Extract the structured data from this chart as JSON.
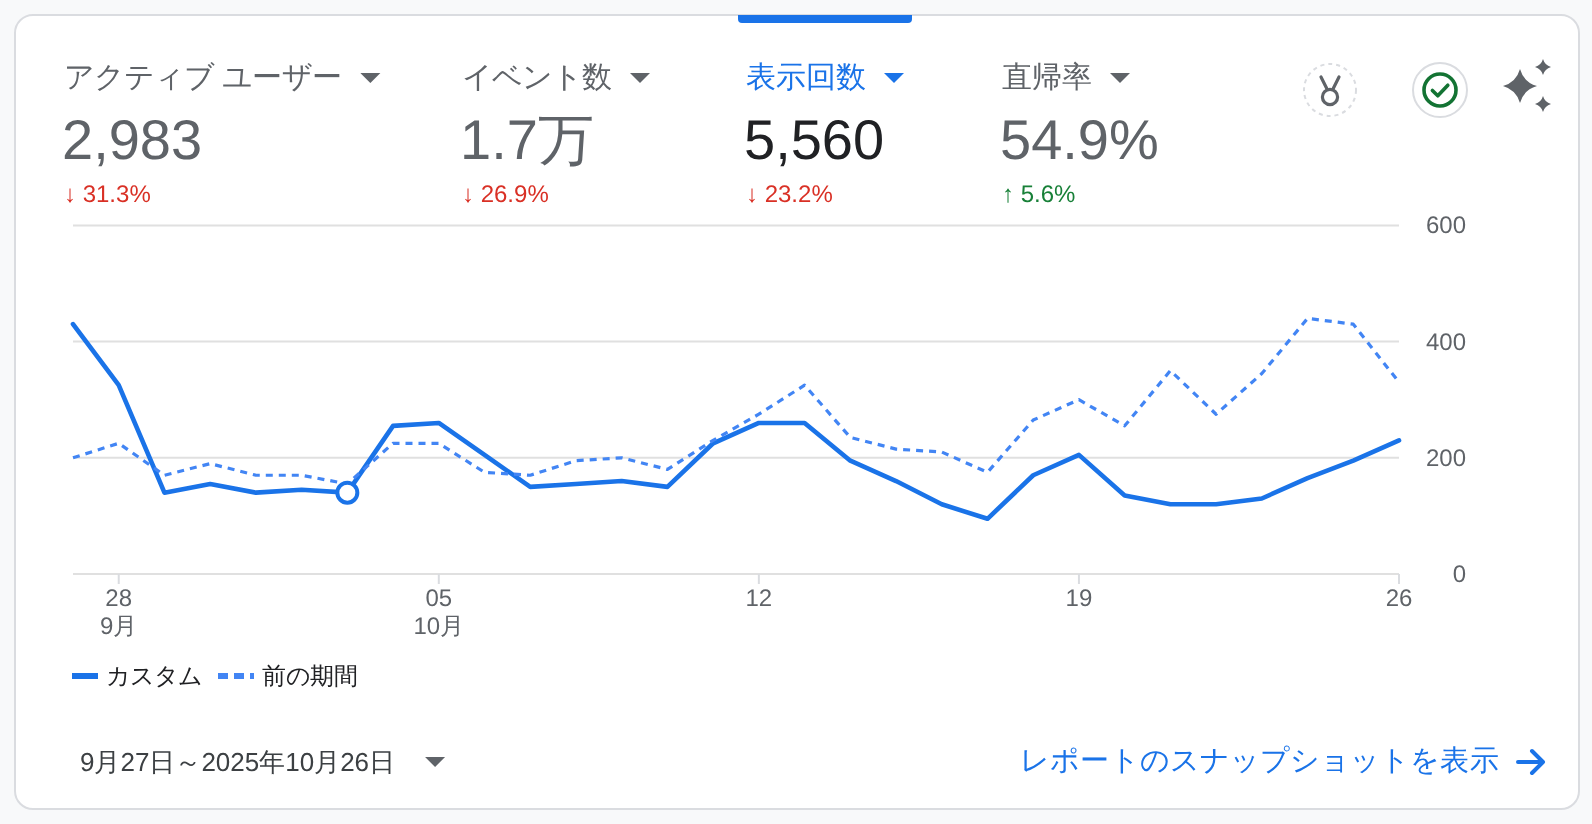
{
  "chart_data": {
    "type": "line",
    "annotations": [
      "アクティブ ユーザー",
      "2,983",
      "↓ 31.3%",
      "イベント数",
      "1.7万",
      "↓ 26.9%",
      "表示回数",
      "5,560",
      "↓ 23.2%",
      "直帰率",
      "54.9%",
      "↑ 5.6%",
      "9月27日～2025年10月26日",
      "レポートのスナップショットを表示"
    ],
    "x": [
      "2025-09-27",
      "2025-09-28",
      "2025-09-29",
      "2025-09-30",
      "2025-10-01",
      "2025-10-02",
      "2025-10-03",
      "2025-10-04",
      "2025-10-05",
      "2025-10-06",
      "2025-10-07",
      "2025-10-08",
      "2025-10-09",
      "2025-10-10",
      "2025-10-11",
      "2025-10-12",
      "2025-10-13",
      "2025-10-14",
      "2025-10-15",
      "2025-10-16",
      "2025-10-17",
      "2025-10-18",
      "2025-10-19",
      "2025-10-20",
      "2025-10-21",
      "2025-10-22",
      "2025-10-23",
      "2025-10-24",
      "2025-10-25",
      "2025-10-26"
    ],
    "series": [
      {
        "name": "カスタム",
        "color": "#1a73e8",
        "values": [
          430,
          325,
          140,
          155,
          140,
          145,
          140,
          255,
          260,
          205,
          150,
          155,
          160,
          150,
          225,
          260,
          260,
          195,
          160,
          120,
          95,
          170,
          205,
          135,
          120,
          120,
          130,
          165,
          195,
          230
        ]
      },
      {
        "name": "前の期間",
        "color": "#4285f4",
        "line_style": "dashed",
        "values": [
          200,
          225,
          170,
          190,
          170,
          170,
          155,
          225,
          225,
          175,
          170,
          195,
          200,
          180,
          230,
          275,
          325,
          235,
          215,
          210,
          175,
          265,
          300,
          255,
          350,
          275,
          345,
          440,
          430,
          330
        ]
      },
      {
        "type": "scatter",
        "color": "#1a73e8",
        "marker": "circle",
        "x": [
          "2025-10-03"
        ],
        "values": [
          140
        ]
      }
    ],
    "xlim": [
      "2025-09-27",
      "2025-10-26"
    ],
    "xticks": [
      {
        "value": "2025-09-28",
        "label": "28\n9月"
      },
      {
        "value": "2025-10-05",
        "label": "05\n10月"
      },
      {
        "value": "2025-10-12",
        "label": "12"
      },
      {
        "value": "2025-10-19",
        "label": "19"
      },
      {
        "value": "2025-10-26",
        "label": "26"
      }
    ],
    "ylim": [
      0,
      600
    ],
    "yticks": [
      0,
      200,
      400,
      600
    ],
    "grid": "y",
    "legend": "bottom left",
    "marker": "none",
    "line_style": "solid"
  }
}
